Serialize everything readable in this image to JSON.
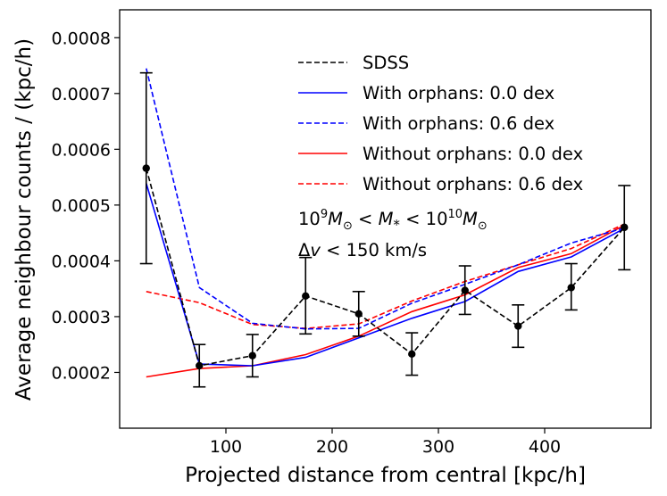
{
  "chart_data": {
    "type": "line",
    "title": "",
    "xlabel": "Projected distance from central [kpc/h]",
    "ylabel": "Average neighbour counts / (kpc/h)",
    "xlim": [
      0,
      500
    ],
    "ylim": [
      0.0001,
      0.00085
    ],
    "x_ticks": [
      100,
      200,
      300,
      400
    ],
    "x_tick_labels": [
      "100",
      "200",
      "300",
      "400"
    ],
    "y_ticks": [
      0.0002,
      0.0003,
      0.0004,
      0.0005,
      0.0006,
      0.0007,
      0.0008
    ],
    "y_tick_labels": [
      "0.0002",
      "0.0003",
      "0.0004",
      "0.0005",
      "0.0006",
      "0.0007",
      "0.0008"
    ],
    "grid": false,
    "legend_position": "top-right",
    "x": [
      25,
      75,
      125,
      175,
      225,
      275,
      325,
      375,
      425,
      475
    ],
    "series": [
      {
        "name": "SDSS",
        "color": "#000000",
        "style": "dashed",
        "markers": true,
        "values": [
          0.000566,
          0.000212,
          0.00023,
          0.000337,
          0.000305,
          0.000233,
          0.000347,
          0.000283,
          0.000352,
          0.00046
        ],
        "error_lower": [
          0.000395,
          0.000174,
          0.000192,
          0.000269,
          0.000265,
          0.000195,
          0.000304,
          0.000245,
          0.000312,
          0.000384
        ],
        "error_upper": [
          0.000737,
          0.00025,
          0.000268,
          0.000406,
          0.000345,
          0.000271,
          0.000391,
          0.000321,
          0.000395,
          0.000535
        ]
      },
      {
        "name": "With orphans: 0.0 dex",
        "color": "#0000ff",
        "style": "solid",
        "markers": false,
        "values": [
          0.000539,
          0.000215,
          0.000212,
          0.000227,
          0.000262,
          0.000297,
          0.000327,
          0.000381,
          0.000407,
          0.000458
        ]
      },
      {
        "name": "With orphans: 0.6 dex",
        "color": "#0000ff",
        "style": "dashed",
        "markers": false,
        "values": [
          0.000745,
          0.000352,
          0.000288,
          0.000278,
          0.000279,
          0.000324,
          0.000358,
          0.000393,
          0.000432,
          0.000459
        ]
      },
      {
        "name": "Without orphans: 0.0 dex",
        "color": "#ff0000",
        "style": "solid",
        "markers": false,
        "values": [
          0.000192,
          0.000207,
          0.000212,
          0.000232,
          0.000265,
          0.000309,
          0.000339,
          0.000388,
          0.000413,
          0.000464
        ]
      },
      {
        "name": "Without orphans: 0.6 dex",
        "color": "#ff0000",
        "style": "dashed",
        "markers": false,
        "values": [
          0.000345,
          0.000325,
          0.000286,
          0.000279,
          0.000287,
          0.000328,
          0.000363,
          0.000393,
          0.000422,
          0.000466
        ]
      }
    ],
    "annotations": [
      "10^9 M_⊙ < M_* < 10^10 M_⊙",
      "Δv < 150 km/s"
    ]
  },
  "annotation": {
    "line1": {
      "base1": "10",
      "exp1": "9",
      "m1": "M",
      "sun1": "⊙",
      "lt1": " < ",
      "m2": "M",
      "star": "*",
      "lt2": " < ",
      "base2": "10",
      "exp2": "10",
      "m3": "M",
      "sun2": "⊙"
    },
    "line2": {
      "delta": "Δ",
      "v": "v",
      "rest": " < 150 km/s"
    }
  }
}
